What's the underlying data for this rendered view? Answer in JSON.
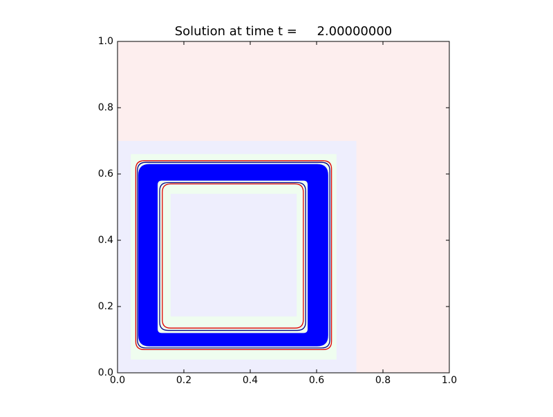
{
  "chart_data": {
    "type": "contour",
    "title": "Solution at time t =     2.00000000",
    "xlim": [
      0,
      1
    ],
    "ylim": [
      0,
      1
    ],
    "xticks": [
      {
        "value": 0,
        "label": "0.0"
      },
      {
        "value": 0.2,
        "label": "0.2"
      },
      {
        "value": 0.4,
        "label": "0.4"
      },
      {
        "value": 0.6,
        "label": "0.6"
      },
      {
        "value": 0.8,
        "label": "0.8"
      },
      {
        "value": 1,
        "label": "1.0"
      }
    ],
    "yticks": [
      {
        "value": 0,
        "label": "0.0"
      },
      {
        "value": 0.2,
        "label": "0.2"
      },
      {
        "value": 0.4,
        "label": "0.4"
      },
      {
        "value": 0.6,
        "label": "0.6"
      },
      {
        "value": 0.8,
        "label": "0.8"
      },
      {
        "value": 1,
        "label": "1.0"
      }
    ],
    "patches": [
      {
        "x": [
          0,
          1
        ],
        "y": [
          0,
          1
        ],
        "color": "#fdeeee"
      },
      {
        "x": [
          0,
          0.72
        ],
        "y": [
          0,
          0.7
        ],
        "color": "#eeeefd"
      },
      {
        "x": [
          0.04,
          0.66
        ],
        "y": [
          0.04,
          0.66
        ],
        "color": "#effdef"
      },
      {
        "x": [
          0.16,
          0.54
        ],
        "y": [
          0.17,
          0.54
        ],
        "color": "#eeeefd"
      }
    ],
    "band": {
      "outer": {
        "x": [
          0.0625,
          0.635
        ],
        "y": [
          0.08,
          0.63
        ]
      },
      "inner": {
        "x": [
          0.121,
          0.573
        ],
        "y": [
          0.12,
          0.58
        ]
      },
      "color": "#0000ff"
    },
    "contours": [
      {
        "x": [
          0.055,
          0.645
        ],
        "y": [
          0.07,
          0.64
        ],
        "color": "#dd0000"
      },
      {
        "x": [
          0.06,
          0.64
        ],
        "y": [
          0.075,
          0.635
        ],
        "color": "#000088"
      },
      {
        "x": [
          0.127,
          0.567
        ],
        "y": [
          0.128,
          0.574
        ],
        "color": "#000088"
      },
      {
        "x": [
          0.135,
          0.56
        ],
        "y": [
          0.135,
          0.57
        ],
        "color": "#dd0000"
      }
    ]
  }
}
